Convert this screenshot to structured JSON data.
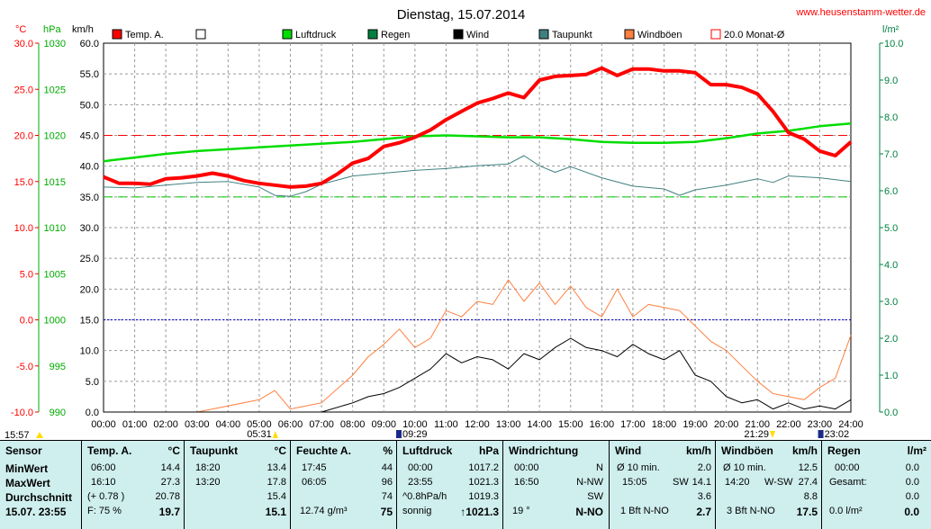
{
  "title": "Dienstag, 15.07.2014",
  "site": "www.heusenstamm-wetter.de",
  "axes": {
    "temp_unit": "°C",
    "hpa_unit": "hPa",
    "kmh_unit": "km/h",
    "rain_unit": "l/m²",
    "temp_ticks": [
      "30.0",
      "25.0",
      "20.0",
      "15.0",
      "10.0",
      "5.0",
      "0.0",
      "-5.0",
      "-10.0"
    ],
    "hpa_ticks": [
      "1030",
      "1025",
      "1020",
      "1015",
      "1010",
      "1005",
      "1000",
      "995",
      "990"
    ],
    "kmh_ticks": [
      "60.0",
      "55.0",
      "50.0",
      "45.0",
      "40.0",
      "35.0",
      "30.0",
      "25.0",
      "20.0",
      "15.0",
      "10.0",
      "5.0",
      "0.0"
    ],
    "rain_ticks": [
      "10.0",
      "9.0",
      "8.0",
      "7.0",
      "6.0",
      "5.0",
      "4.0",
      "3.0",
      "2.0",
      "1.0",
      "0.0"
    ],
    "time_ticks": [
      "00:00",
      "01:00",
      "02:00",
      "03:00",
      "04:00",
      "05:00",
      "06:00",
      "07:00",
      "08:00",
      "09:00",
      "10:00",
      "11:00",
      "12:00",
      "13:00",
      "14:00",
      "15:00",
      "16:00",
      "17:00",
      "18:00",
      "19:00",
      "20:00",
      "21:00",
      "22:00",
      "23:00",
      "24:00"
    ]
  },
  "markers": {
    "sunrise": "05:31",
    "moon1": "09:29",
    "sunset": "21:29",
    "moon2": "23:02",
    "left_time": "15:57"
  },
  "legend": [
    {
      "label": "Temp. A.",
      "color": "#ff0000"
    },
    {
      "label": "",
      "color": "#ffffff"
    },
    {
      "label": "Luftdruck",
      "color": "#00dd00"
    },
    {
      "label": "Regen",
      "color": "#008040"
    },
    {
      "label": "Wind",
      "color": "#000000"
    },
    {
      "label": "Taupunkt",
      "color": "#408080"
    },
    {
      "label": "Windböen",
      "color": "#ff8040"
    },
    {
      "label": "20.0 Monat-Ø",
      "color": "#ff0000"
    }
  ],
  "chart_data": {
    "type": "line",
    "x_range": [
      0,
      24
    ],
    "temp_range": [
      -10,
      30
    ],
    "kmh_range": [
      0,
      60
    ],
    "hpa_range": [
      990,
      1030
    ],
    "monthly_avg_temp": 20.0,
    "series": [
      {
        "name": "Temp. A.",
        "axis": "temp",
        "color": "#ff0000",
        "x": [
          0,
          0.5,
          1,
          1.5,
          2,
          2.5,
          3,
          3.5,
          4,
          4.5,
          5,
          5.5,
          6,
          6.5,
          7,
          7.5,
          8,
          8.5,
          9,
          9.5,
          10,
          10.5,
          11,
          11.5,
          12,
          12.5,
          13,
          13.5,
          14,
          14.5,
          15,
          15.5,
          16,
          16.5,
          17,
          17.5,
          18,
          18.5,
          19,
          19.5,
          20,
          20.5,
          21,
          21.5,
          22,
          22.5,
          23,
          23.5,
          24
        ],
        "y": [
          15.5,
          14.8,
          14.8,
          14.7,
          15.3,
          15.4,
          15.6,
          15.9,
          15.6,
          15.1,
          14.8,
          14.6,
          14.4,
          14.5,
          14.8,
          15.8,
          17.0,
          17.5,
          18.8,
          19.2,
          19.8,
          20.6,
          21.7,
          22.6,
          23.5,
          24.0,
          24.6,
          24.1,
          26.0,
          26.4,
          26.5,
          26.6,
          27.3,
          26.5,
          27.2,
          27.2,
          27.0,
          27.0,
          26.8,
          25.5,
          25.5,
          25.2,
          24.5,
          22.6,
          20.3,
          19.6,
          18.3,
          17.8,
          19.3
        ]
      },
      {
        "name": "Luftdruck",
        "axis": "hpa",
        "color": "#00dd00",
        "x": [
          0,
          1,
          2,
          3,
          4,
          5,
          6,
          7,
          8,
          9,
          10,
          11,
          12,
          13,
          14,
          15,
          16,
          17,
          18,
          19,
          20,
          21,
          22,
          23,
          24
        ],
        "y": [
          1017.2,
          1017.6,
          1018.0,
          1018.3,
          1018.5,
          1018.7,
          1018.9,
          1019.1,
          1019.3,
          1019.6,
          1019.9,
          1020.0,
          1019.9,
          1019.8,
          1019.8,
          1019.6,
          1019.3,
          1019.2,
          1019.2,
          1019.3,
          1019.7,
          1020.2,
          1020.5,
          1021.0,
          1021.3
        ]
      },
      {
        "name": "Taupunkt",
        "axis": "temp",
        "color": "#408080",
        "x": [
          0,
          1,
          2,
          3,
          4,
          5,
          5.5,
          6,
          6.5,
          7,
          8,
          9,
          10,
          11,
          12,
          13,
          13.5,
          14,
          14.5,
          15,
          16,
          17,
          18,
          18.5,
          19,
          20,
          21,
          21.5,
          22,
          23,
          24
        ],
        "y": [
          14.4,
          14.3,
          14.6,
          14.9,
          15.0,
          14.4,
          13.5,
          13.4,
          13.9,
          14.7,
          15.6,
          15.9,
          16.2,
          16.4,
          16.7,
          16.9,
          17.8,
          16.7,
          16.0,
          16.6,
          15.4,
          14.5,
          14.2,
          13.5,
          14.1,
          14.6,
          15.3,
          14.9,
          15.6,
          15.4,
          15.0
        ]
      },
      {
        "name": "Wind",
        "axis": "kmh",
        "color": "#000000",
        "x": [
          0,
          7,
          8,
          8.5,
          9,
          9.5,
          10,
          10.5,
          11,
          11.5,
          12,
          12.5,
          13,
          13.5,
          14,
          14.5,
          15,
          15.5,
          16,
          16.5,
          17,
          17.5,
          18,
          18.5,
          19,
          19.5,
          20,
          20.5,
          21,
          21.5,
          22,
          22.5,
          23,
          23.5,
          24
        ],
        "y": [
          0,
          0,
          1.5,
          2.5,
          3.0,
          4.0,
          5.5,
          7.0,
          9.5,
          8.0,
          9.0,
          8.5,
          7.0,
          9.5,
          8.5,
          10.5,
          12.0,
          10.5,
          10.0,
          9.0,
          11.0,
          9.5,
          8.5,
          10.0,
          6.0,
          5.0,
          2.5,
          1.5,
          2.0,
          0.5,
          1.5,
          0.5,
          1.0,
          0.5,
          2.0
        ]
      },
      {
        "name": "Windböen",
        "axis": "kmh",
        "color": "#ff8040",
        "x": [
          0,
          3,
          4,
          5,
          5.5,
          6,
          7,
          8,
          8.5,
          9,
          9.5,
          10,
          10.5,
          11,
          11.5,
          12,
          12.5,
          13,
          13.5,
          14,
          14.5,
          15,
          15.5,
          16,
          16.5,
          17,
          17.5,
          18,
          18.5,
          19,
          19.5,
          20,
          20.5,
          21,
          21.5,
          22,
          22.5,
          23,
          23.5,
          24
        ],
        "y": [
          0,
          0,
          1.0,
          2.0,
          3.5,
          0.5,
          1.5,
          6.0,
          9.0,
          11.0,
          13.5,
          10.5,
          12.0,
          16.5,
          15.5,
          18.0,
          17.5,
          21.5,
          18.0,
          21.0,
          17.5,
          20.5,
          17.0,
          15.5,
          20.0,
          15.5,
          17.5,
          17.0,
          16.5,
          14.0,
          11.5,
          10.0,
          7.5,
          5.0,
          3.0,
          2.5,
          2.0,
          4.0,
          5.5,
          12.5
        ]
      }
    ]
  },
  "panel": {
    "sensor": {
      "h": "Sensor",
      "min": "MinWert",
      "max": "MaxWert",
      "avg": "Durchschnitt",
      "cur": "15.07. 23:55"
    },
    "temp": {
      "h": "Temp. A.",
      "u": "°C",
      "min_t": "06:00",
      "min_v": "14.4",
      "max_t": "16:10",
      "max_v": "27.3",
      "avg_l": "(+ 0.78 )",
      "avg_v": "20.78",
      "cur_l": "F: 75 %",
      "cur_v": "19.7"
    },
    "dew": {
      "h": "Taupunkt",
      "u": "°C",
      "min_t": "18:20",
      "min_v": "13.4",
      "max_t": "13:20",
      "max_v": "17.8",
      "avg_v": "15.4",
      "cur_v": "15.1"
    },
    "hum": {
      "h": "Feuchte A.",
      "u": "%",
      "min_t": "17:45",
      "min_v": "44",
      "max_t": "06:05",
      "max_v": "96",
      "avg_v": "74",
      "cur_l": "12.74 g/m³",
      "cur_v": "75"
    },
    "press": {
      "h": "Luftdruck",
      "u": "hPa",
      "min_t": "00:00",
      "min_v": "1017.2",
      "max_t": "23:55",
      "max_v": "1021.3",
      "avg_l": "^0.8hPa/h",
      "avg_v": "1019.3",
      "cur_l": "sonnig",
      "cur_v": "↑1021.3"
    },
    "wdir": {
      "h": "Windrichtung",
      "min_t": "00:00",
      "min_v": "N",
      "max_t": "16:50",
      "max_v": "N-NW",
      "avg_v": "SW",
      "cur_l": "19 °",
      "cur_v": "N-NO"
    },
    "wind": {
      "h": "Wind",
      "u": "km/h",
      "min_l": "Ø 10 min.",
      "min_v": "2.0",
      "max_t": "15:05",
      "max_d": "SW",
      "max_v": "14.1",
      "avg_v": "3.6",
      "cur_l": "1 Bft N-NO",
      "cur_v": "2.7"
    },
    "gust": {
      "h": "Windböen",
      "u": "km/h",
      "min_l": "Ø 10 min.",
      "min_v": "12.5",
      "max_t": "14:20",
      "max_d": "W-SW",
      "max_v": "27.4",
      "avg_v": "8.8",
      "cur_l": "3 Bft N-NO",
      "cur_v": "17.5"
    },
    "rain": {
      "h": "Regen",
      "u": "l/m²",
      "min_t": "00:00",
      "min_v": "0.0",
      "max_l": "Gesamt:",
      "max_v": "0.0",
      "avg_v": "0.0",
      "cur_l": "0.0 l/m²",
      "cur_v": "0.0"
    }
  }
}
